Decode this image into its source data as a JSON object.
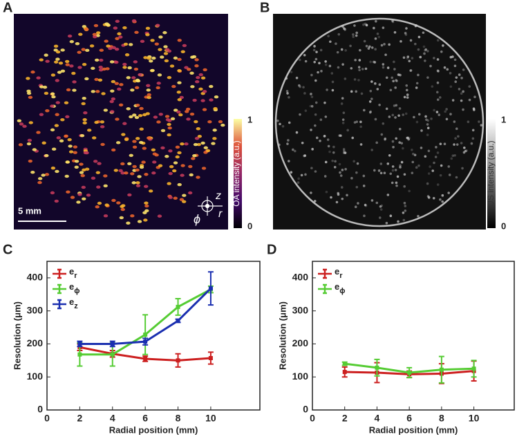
{
  "images": [
    {
      "label": "A",
      "scale_bar": "5 mm",
      "colorbar_label": "OA intensity (a.u.)",
      "colorbar_max": 1,
      "colorbar_min": 0,
      "axes": [
        "z",
        "r",
        "ϕ"
      ]
    },
    {
      "label": "B",
      "colorbar_label": "US intensity (a.u.)",
      "colorbar_max": 1,
      "colorbar_min": 0
    }
  ],
  "chart_data": [
    {
      "type": "line",
      "panel": "C",
      "xlabel": "Radial position (mm)",
      "ylabel": "Resolution (μm)",
      "x": [
        2,
        4,
        6,
        8,
        10
      ],
      "xlim": [
        0,
        13
      ],
      "xticks": [
        0,
        2,
        4,
        6,
        8,
        10
      ],
      "ylim": [
        0,
        450
      ],
      "yticks": [
        0,
        100,
        200,
        300,
        400
      ],
      "legend": "upper left",
      "series": [
        {
          "name": "e_r",
          "color": "#cc1f1f",
          "values": [
            190,
            170,
            155,
            150,
            157
          ],
          "errors": [
            10,
            10,
            8,
            20,
            18
          ]
        },
        {
          "name": "e_ϕ",
          "color": "#55cc33",
          "values": [
            168,
            168,
            228,
            312,
            365
          ],
          "errors": [
            35,
            35,
            60,
            25,
            10
          ]
        },
        {
          "name": "e_z",
          "color": "#1a2fb0",
          "values": [
            200,
            200,
            207,
            270,
            368
          ],
          "errors": [
            8,
            8,
            10,
            5,
            50
          ]
        }
      ]
    },
    {
      "type": "line",
      "panel": "D",
      "xlabel": "Radial position (mm)",
      "ylabel": "Resolution (μm)",
      "x": [
        2,
        4,
        6,
        8,
        10
      ],
      "xlim": [
        0,
        12.5
      ],
      "xticks": [
        0,
        2,
        4,
        6,
        8,
        10
      ],
      "ylim": [
        0,
        450
      ],
      "yticks": [
        0,
        100,
        200,
        300,
        400
      ],
      "legend": "upper left",
      "series": [
        {
          "name": "e_r",
          "color": "#cc1f1f",
          "values": [
            115,
            113,
            108,
            110,
            118
          ],
          "errors": [
            15,
            30,
            10,
            30,
            30
          ]
        },
        {
          "name": "e_ϕ",
          "color": "#55cc33",
          "values": [
            140,
            128,
            113,
            122,
            125
          ],
          "errors": [
            5,
            25,
            15,
            40,
            25
          ]
        }
      ]
    }
  ]
}
